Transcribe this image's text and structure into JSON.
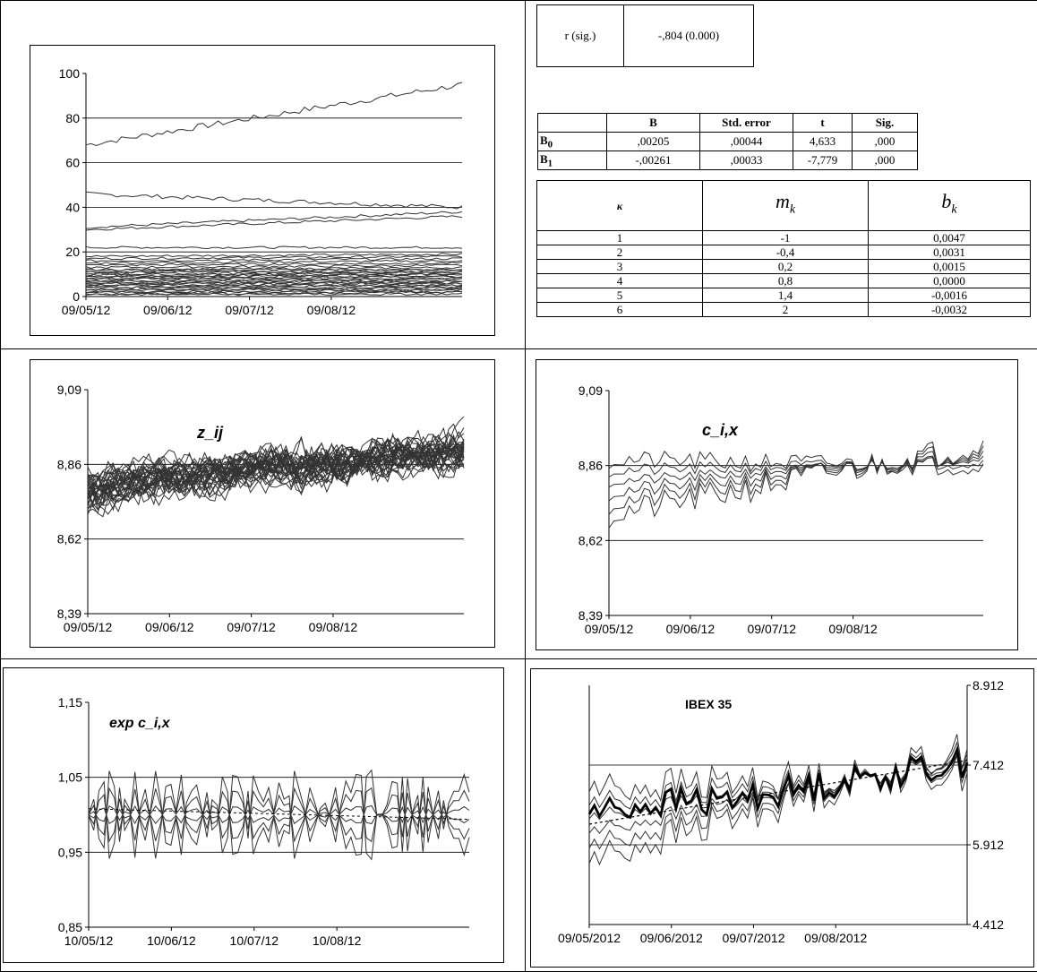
{
  "correlation_table": {
    "label": "r (sig.)",
    "value": "-,804 (0.000)"
  },
  "regression_table": {
    "headers": [
      "",
      "B",
      "Std. error",
      "t",
      "Sig."
    ],
    "rows": [
      {
        "name": "B",
        "sub": "0",
        "values": [
          ",00205",
          ",00044",
          "4,633",
          ",000"
        ]
      },
      {
        "name": "B",
        "sub": "1",
        "values": [
          "-,00261",
          ",00033",
          "-7,779",
          ",000"
        ]
      }
    ]
  },
  "k_table": {
    "header_k": "κ",
    "header_m": "m",
    "header_m_sub": "k",
    "header_b": "b",
    "header_b_sub": "k",
    "rows": [
      {
        "k": "1",
        "m": "-1",
        "b": "0,0047"
      },
      {
        "k": "2",
        "m": "-0,4",
        "b": "0,0031"
      },
      {
        "k": "3",
        "m": "0,2",
        "b": "0,0015"
      },
      {
        "k": "4",
        "m": "0,8",
        "b": "0,0000"
      },
      {
        "k": "5",
        "m": "1,4",
        "b": "-0,0016"
      },
      {
        "k": "6",
        "m": "2",
        "b": "-0,0032"
      }
    ]
  },
  "chart_data": [
    {
      "id": "prices",
      "type": "line",
      "title": "",
      "ylim": [
        0,
        100
      ],
      "y_ticks": [
        "0",
        "20",
        "40",
        "60",
        "80",
        "100"
      ],
      "x_ticks": [
        "09/05/12",
        "09/06/12",
        "09/07/12",
        "09/08/12"
      ],
      "series_count": 35,
      "series_levels": [
        68,
        46,
        31,
        30,
        22,
        18,
        17,
        16,
        15,
        14,
        13,
        12,
        12,
        11,
        11,
        10,
        10,
        9,
        9,
        8,
        8,
        7,
        7,
        6,
        6,
        5,
        5,
        4,
        4,
        3,
        3,
        2,
        2,
        1,
        1
      ],
      "series_end_levels": [
        95,
        40,
        38,
        36,
        22,
        19,
        18,
        17,
        16,
        15,
        14,
        13,
        12,
        12,
        11,
        11,
        10,
        10,
        9,
        9,
        8,
        8,
        7,
        7,
        6,
        6,
        5,
        5,
        4,
        4,
        3,
        3,
        2,
        2,
        1
      ]
    },
    {
      "id": "z-ij",
      "type": "line",
      "title": "z_ij",
      "ylim": [
        8.39,
        9.09
      ],
      "y_ticks": [
        "8,39",
        "8,62",
        "8,86",
        "9,09"
      ],
      "x_ticks": [
        "09/05/12",
        "09/06/12",
        "09/07/12",
        "09/08/12"
      ],
      "series_count": 35,
      "level_start": 8.78,
      "level_end": 8.9
    },
    {
      "id": "c-ix",
      "type": "line",
      "title": "c_i,x",
      "ylim": [
        8.39,
        9.09
      ],
      "y_ticks": [
        "8,39",
        "8,62",
        "8,86",
        "9,09"
      ],
      "x_ticks": [
        "09/05/12",
        "09/06/12",
        "09/07/12",
        "09/08/12"
      ],
      "series_count": 6,
      "slopes": [
        -1,
        -0.4,
        0.2,
        0.8,
        1.4,
        2
      ],
      "pivot_fraction": 0.72,
      "pivot_level": 8.86
    },
    {
      "id": "exp-c-ix",
      "type": "line",
      "title": "exp c_i,x",
      "ylim": [
        0.85,
        1.15
      ],
      "y_ticks": [
        "0,85",
        "0,95",
        "1,05",
        "1,15"
      ],
      "x_ticks": [
        "10/05/12",
        "10/06/12",
        "10/07/12",
        "10/08/12"
      ],
      "series_count": 6,
      "center": 1.0
    },
    {
      "id": "ibex",
      "type": "line",
      "title": "IBEX 35",
      "ylim": [
        4412,
        8912
      ],
      "y_ticks_right": [
        "4.412",
        "5.912",
        "7.412",
        "8.912"
      ],
      "x_ticks": [
        "09/05/2012",
        "09/06/2012",
        "09/07/2012",
        "09/08/2012"
      ],
      "series_count": 6,
      "trend_start": 6300,
      "trend_end": 7500
    }
  ]
}
